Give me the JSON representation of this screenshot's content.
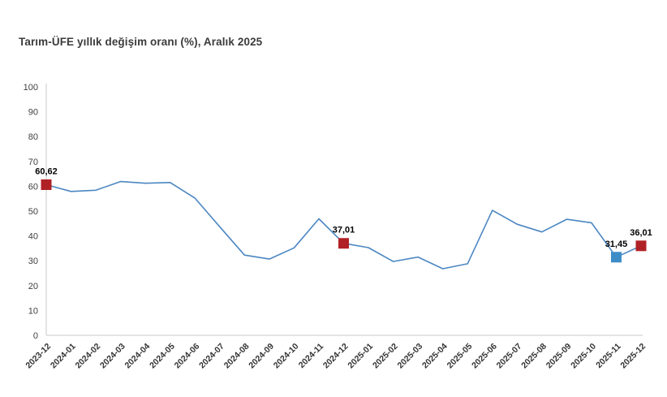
{
  "chart_data": {
    "type": "line",
    "title": "Tarım-ÜFE yıllık değişim oranı (%), Aralık 2025",
    "xlabel": "",
    "ylabel": "",
    "legend": "none",
    "grid": false,
    "ylim": [
      0,
      100
    ],
    "y_ticks": [
      0,
      10,
      20,
      30,
      40,
      50,
      60,
      70,
      80,
      90,
      100
    ],
    "x_tick_rotation": -45,
    "x": [
      "2023-12",
      "2024-01",
      "2024-02",
      "2024-03",
      "2024-04",
      "2024-05",
      "2024-06",
      "2024-07",
      "2024-08",
      "2024-09",
      "2024-10",
      "2024-11",
      "2024-12",
      "2025-01",
      "2025-02",
      "2025-03",
      "2025-04",
      "2025-05",
      "2025-06",
      "2025-07",
      "2025-08",
      "2025-09",
      "2025-10",
      "2025-11",
      "2025-12"
    ],
    "values": [
      60.62,
      57.9,
      58.4,
      61.9,
      61.2,
      61.5,
      55.2,
      43.7,
      32.3,
      30.7,
      35.2,
      46.9,
      37.01,
      35.3,
      29.7,
      31.5,
      26.8,
      28.8,
      50.3,
      44.7,
      41.6,
      46.7,
      45.3,
      31.45,
      36.01
    ],
    "labeled_points": [
      {
        "index": 0,
        "x": "2023-12",
        "value": 60.62,
        "label": "60,62",
        "marker_color": "#b02126"
      },
      {
        "index": 12,
        "x": "2024-12",
        "value": 37.01,
        "label": "37,01",
        "marker_color": "#b02126"
      },
      {
        "index": 23,
        "x": "2025-11",
        "value": 31.45,
        "label": "31,45",
        "marker_color": "#3e8cc7"
      },
      {
        "index": 24,
        "x": "2025-12",
        "value": 36.01,
        "label": "36,01",
        "marker_color": "#b02126"
      }
    ],
    "colors": {
      "line": "#4c87c2",
      "marker_red": "#b02126",
      "marker_blue": "#3e8cc7",
      "axis": "#c9c9c9",
      "y_tick_text": "#404040",
      "x_tick_text": "#333333",
      "data_label_text": "#000000"
    }
  }
}
